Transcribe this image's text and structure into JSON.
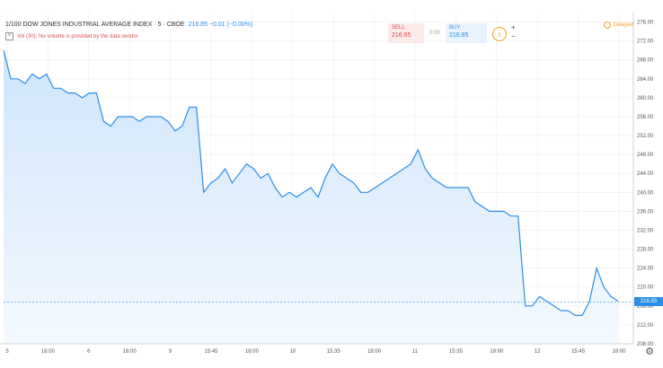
{
  "header": {
    "symbol": "1/100 DOW JONES INDUSTRIAL AVERAGE INDEX · 5 · CBOE",
    "values": "216.85 −0.01 (−0.00%)",
    "volume_notice": "Vol (30): No volume is provided by the data vendor."
  },
  "trade": {
    "sell_label": "SELL",
    "sell_price": "216.85",
    "spread": "0.00",
    "buy_label": "BUY",
    "buy_price": "216.85",
    "plus": "+",
    "minus": "−"
  },
  "status": {
    "delayed": "Delayed"
  },
  "current_price_label": "216.85",
  "colors": {
    "line": "#2a8ee6",
    "fill_top": "#cfe5fb",
    "fill_bottom": "#f3f9ff",
    "grid": "#ececec"
  },
  "chart_data": {
    "type": "area",
    "ylim": [
      208,
      278
    ],
    "y_ticks": [
      "276.00",
      "272.00",
      "268.00",
      "264.00",
      "260.00",
      "256.00",
      "252.00",
      "248.00",
      "244.00",
      "240.00",
      "236.00",
      "232.00",
      "228.00",
      "224.00",
      "220.00",
      "216.00",
      "212.00",
      "208.00"
    ],
    "x_ticks": [
      "5",
      "18:00",
      "6",
      "18:00",
      "9",
      "15:45",
      "18:00",
      "10",
      "15:35",
      "18:00",
      "11",
      "15:35",
      "18:00",
      "12",
      "15:45",
      "18:00"
    ],
    "series": [
      {
        "values": [
          270,
          264,
          264,
          263,
          265,
          264,
          265,
          262,
          262,
          261,
          261,
          260,
          261,
          261,
          255,
          254,
          256,
          256,
          256,
          255,
          256,
          256,
          256,
          255,
          253,
          254,
          258,
          258,
          240,
          242,
          243,
          245,
          242,
          244,
          246,
          245,
          243,
          244,
          241,
          239,
          240,
          239,
          240,
          241,
          239,
          243,
          246,
          244,
          243,
          242,
          240,
          240,
          241,
          242,
          243,
          244,
          245,
          246,
          249,
          245,
          243,
          242,
          241,
          241,
          241,
          241,
          238,
          237,
          236,
          236,
          236,
          235,
          235,
          216,
          216,
          218,
          217,
          216,
          215,
          215,
          214,
          214,
          217,
          224,
          220,
          218,
          217
        ]
      }
    ]
  }
}
